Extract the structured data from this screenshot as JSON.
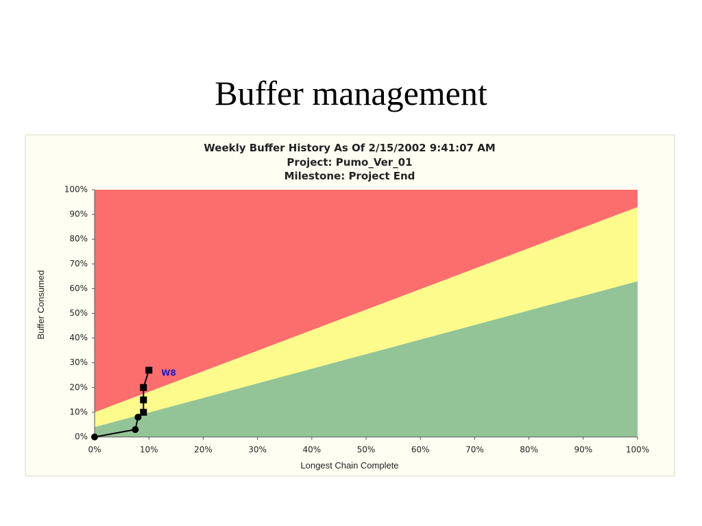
{
  "slide_title": "Buffer management",
  "chart_data": {
    "type": "line",
    "title": [
      "Weekly Buffer History As Of 2/15/2002 9:41:07 AM",
      "Project: Pumo_Ver_01",
      "Milestone: Project End"
    ],
    "x_label": "Longest Chain Complete",
    "y_label": "Buffer Consumed",
    "xlim": [
      0,
      100
    ],
    "ylim": [
      0,
      100
    ],
    "xticks": [
      {
        "value": 0,
        "label": "0%"
      },
      {
        "value": 10,
        "label": "10%"
      },
      {
        "value": 20,
        "label": "20%"
      },
      {
        "value": 30,
        "label": "30%"
      },
      {
        "value": 40,
        "label": "40%"
      },
      {
        "value": 50,
        "label": "50%"
      },
      {
        "value": 60,
        "label": "60%"
      },
      {
        "value": 70,
        "label": "70%"
      },
      {
        "value": 80,
        "label": "80%"
      },
      {
        "value": 90,
        "label": "90%"
      },
      {
        "value": 100,
        "label": "100%"
      }
    ],
    "yticks": [
      {
        "value": 0,
        "label": "0%"
      },
      {
        "value": 10,
        "label": "10%"
      },
      {
        "value": 20,
        "label": "20%"
      },
      {
        "value": 30,
        "label": "30%"
      },
      {
        "value": 40,
        "label": "40%"
      },
      {
        "value": 50,
        "label": "50%"
      },
      {
        "value": 60,
        "label": "60%"
      },
      {
        "value": 70,
        "label": "70%"
      },
      {
        "value": 80,
        "label": "80%"
      },
      {
        "value": 90,
        "label": "90%"
      },
      {
        "value": 100,
        "label": "100%"
      }
    ],
    "bands": [
      {
        "color": "#93c497",
        "x": [
          0,
          100
        ],
        "values": [
          4,
          63
        ]
      },
      {
        "color": "#fdfb8b",
        "x": [
          0,
          100
        ],
        "values": [
          10,
          93
        ]
      },
      {
        "color": "#fc6d6e",
        "x": [
          0,
          100
        ],
        "values": [
          100,
          100
        ]
      }
    ],
    "series": [
      {
        "color": "#000000",
        "x": [
          0,
          7.5,
          8,
          9,
          9,
          9,
          10
        ],
        "values": [
          0,
          3,
          8,
          10,
          15,
          20,
          27
        ],
        "markers": [
          "circle",
          "circle",
          "circle",
          "square",
          "square",
          "square",
          "square"
        ]
      }
    ],
    "annotation": {
      "text": "W8",
      "color": "#1a1acc"
    }
  }
}
